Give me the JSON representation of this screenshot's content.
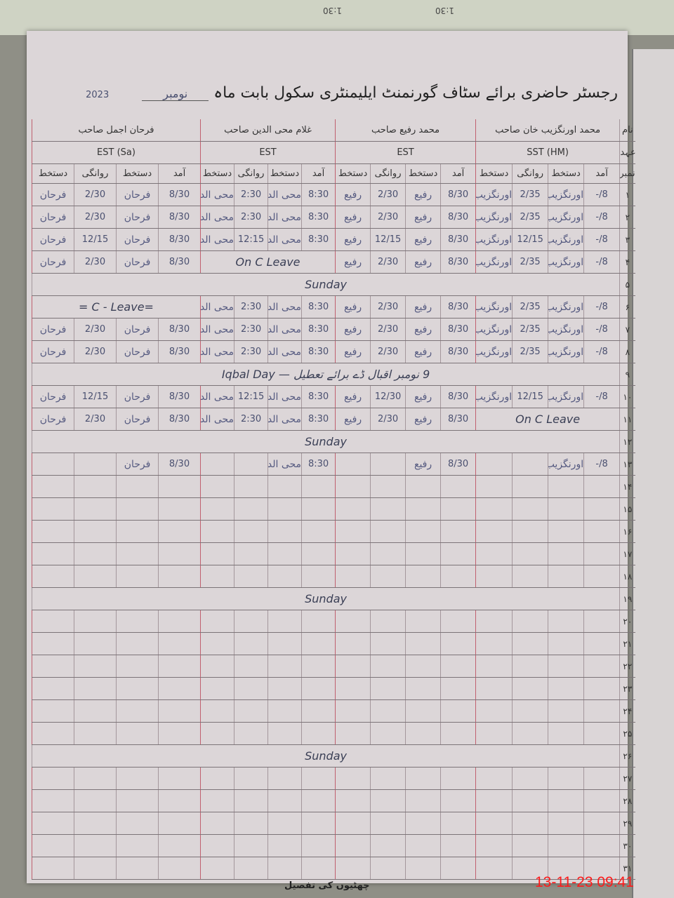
{
  "background_text": [
    "1:30",
    "1:30"
  ],
  "title": {
    "text": "رجسٹر حاضری برائے سٹاف گورنمنٹ ایلیمنٹری سکول بابت ماہ",
    "month": "نومبر",
    "year": "2023"
  },
  "header": {
    "name_label": "نام",
    "designation_label": "عہدہ",
    "serial_label": "نمبر شمار",
    "column_labels": [
      "آمد",
      "دستخط",
      "روانگی",
      "دستخط"
    ],
    "staff": [
      {
        "name": "محمد اورنگزیب خان صاحب",
        "designation": "(HM) SST"
      },
      {
        "name": "محمد رفیع صاحب",
        "designation": "EST"
      },
      {
        "name": "غلام محی الدین صاحب",
        "designation": "EST"
      },
      {
        "name": "فرحان اجمل صاحب",
        "designation": "(Sa) EST"
      }
    ]
  },
  "rows": [
    {
      "serial": "۱",
      "groups": [
        [
          "8/-",
          "اورنگزیب",
          "2/35",
          "اورنگزیب"
        ],
        [
          "8/30",
          "رفیع",
          "2/30",
          "رفیع"
        ],
        [
          "8:30",
          "محی الدین",
          "2:30",
          "محی الدین"
        ],
        [
          "8/30",
          "فرحان",
          "2/30",
          "فرحان"
        ]
      ]
    },
    {
      "serial": "۲",
      "groups": [
        [
          "8/-",
          "اورنگزیب",
          "2/35",
          "اورنگزیب"
        ],
        [
          "8/30",
          "رفیع",
          "2/30",
          "رفیع"
        ],
        [
          "8:30",
          "محی الدین",
          "2:30",
          "محی الدین"
        ],
        [
          "8/30",
          "فرحان",
          "2/30",
          "فرحان"
        ]
      ]
    },
    {
      "serial": "۳",
      "groups": [
        [
          "8/-",
          "اورنگزیب",
          "12/15",
          "اورنگزیب"
        ],
        [
          "8/30",
          "رفیع",
          "12/15",
          "رفیع"
        ],
        [
          "8:30",
          "محی الدین",
          "12:15",
          "محی الدین"
        ],
        [
          "8/30",
          "فرحان",
          "12/15",
          "فرحان"
        ]
      ]
    },
    {
      "serial": "۴",
      "groups": [
        [
          "8/-",
          "اورنگزیب",
          "2/35",
          "اورنگزیب"
        ],
        [
          "8/30",
          "رفیع",
          "2/30",
          "رفیع"
        ],
        "On C Leave",
        [
          "8/30",
          "فرحان",
          "2/30",
          "فرحان"
        ]
      ]
    },
    {
      "serial": "۵",
      "note": "Sunday"
    },
    {
      "serial": "۶",
      "groups": [
        [
          "8/-",
          "اورنگزیب",
          "2/35",
          "اورنگزیب"
        ],
        [
          "8/30",
          "رفیع",
          "2/30",
          "رفیع"
        ],
        [
          "8:30",
          "محی الدین",
          "2:30",
          "محی الدین"
        ],
        "=C - Leave ="
      ]
    },
    {
      "serial": "۷",
      "groups": [
        [
          "8/-",
          "اورنگزیب",
          "2/35",
          "اورنگزیب"
        ],
        [
          "8/30",
          "رفیع",
          "2/30",
          "رفیع"
        ],
        [
          "8:30",
          "محی الدین",
          "2:30",
          "محی الدین"
        ],
        [
          "8/30",
          "فرحان",
          "2/30",
          "فرحان"
        ]
      ]
    },
    {
      "serial": "۸",
      "groups": [
        [
          "8/-",
          "اورنگزیب",
          "2/35",
          "اورنگزیب"
        ],
        [
          "8/30",
          "رفیع",
          "2/30",
          "رفیع"
        ],
        [
          "8:30",
          "محی الدین",
          "2:30",
          "محی الدین"
        ],
        [
          "8/30",
          "فرحان",
          "2/30",
          "فرحان"
        ]
      ]
    },
    {
      "serial": "۹",
      "note": "9 نومبر اقبال ڈے برائے تعطیل — Iqbal Day"
    },
    {
      "serial": "۱۰",
      "groups": [
        [
          "8/-",
          "اورنگزیب",
          "12/15",
          "اورنگزیب"
        ],
        [
          "8/30",
          "رفیع",
          "12/30",
          "رفیع"
        ],
        [
          "8:30",
          "محی الدین",
          "12:15",
          "محی الدین"
        ],
        [
          "8/30",
          "فرحان",
          "12/15",
          "فرحان"
        ]
      ]
    },
    {
      "serial": "۱۱",
      "groups": [
        "On C Leave",
        [
          "8/30",
          "رفیع",
          "2/30",
          "رفیع"
        ],
        [
          "8:30",
          "محی الدین",
          "2:30",
          "محی الدین"
        ],
        [
          "8/30",
          "فرحان",
          "2/30",
          "فرحان"
        ]
      ]
    },
    {
      "serial": "۱۲",
      "note": "Sunday"
    },
    {
      "serial": "۱۳",
      "groups": [
        [
          "8/-",
          "اورنگزیب",
          "",
          ""
        ],
        [
          "8/30",
          "رفیع",
          "",
          ""
        ],
        [
          "8:30",
          "محی الدین",
          "",
          ""
        ],
        [
          "8/30",
          "فرحان",
          "",
          ""
        ]
      ]
    },
    {
      "serial": "۱۴"
    },
    {
      "serial": "۱۵"
    },
    {
      "serial": "۱۶"
    },
    {
      "serial": "۱۷"
    },
    {
      "serial": "۱۸"
    },
    {
      "serial": "۱۹",
      "note": "Sunday"
    },
    {
      "serial": "۲۰"
    },
    {
      "serial": "۲۱"
    },
    {
      "serial": "۲۲"
    },
    {
      "serial": "۲۳"
    },
    {
      "serial": "۲۴"
    },
    {
      "serial": "۲۵"
    },
    {
      "serial": "۲۶",
      "note": "Sunday"
    },
    {
      "serial": "۲۷"
    },
    {
      "serial": "۲۸"
    },
    {
      "serial": "۲۹"
    },
    {
      "serial": "۳۰"
    },
    {
      "serial": "۳۱"
    }
  ],
  "footer": "چھٹیوں کی تفصیل",
  "timestamp": "13-11-23  09:41",
  "colors": {
    "paper": "#dcd6d8",
    "ink": "#4a5070",
    "rule_red": "#c0606f",
    "timestamp": "#ff1a1a"
  }
}
